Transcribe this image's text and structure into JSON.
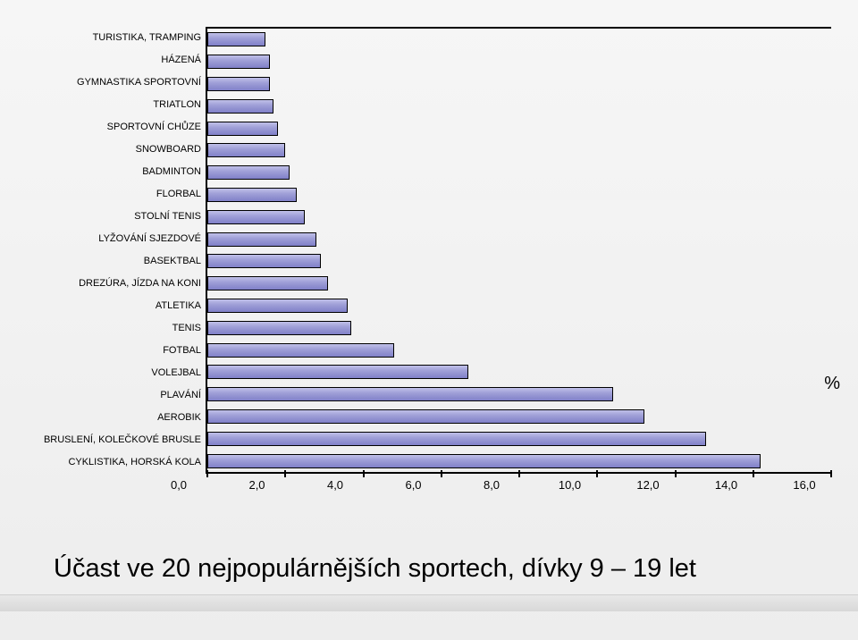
{
  "chart": {
    "type": "bar-horizontal",
    "xmin": 0.0,
    "xmax": 16.0,
    "xtick_step": 2.0,
    "xtick_labels": [
      "0,0",
      "2,0",
      "4,0",
      "6,0",
      "8,0",
      "10,0",
      "12,0",
      "14,0",
      "16,0"
    ],
    "bar_fill": "#9a9ad4",
    "bar_border": "#000000",
    "axis_color": "#000000",
    "background": "#f2f2f2",
    "label_fontsize": 11,
    "tick_fontsize": 13,
    "categories": [
      {
        "label": "TURISTIKA, TRAMPING",
        "value": 1.5
      },
      {
        "label": "HÁZENÁ",
        "value": 1.6
      },
      {
        "label": "GYMNASTIKA SPORTOVNÍ",
        "value": 1.6
      },
      {
        "label": "TRIATLON",
        "value": 1.7
      },
      {
        "label": "SPORTOVNÍ CHŮZE",
        "value": 1.8
      },
      {
        "label": "SNOWBOARD",
        "value": 2.0
      },
      {
        "label": "BADMINTON",
        "value": 2.1
      },
      {
        "label": "FLORBAL",
        "value": 2.3
      },
      {
        "label": "STOLNÍ TENIS",
        "value": 2.5
      },
      {
        "label": "LYŽOVÁNÍ SJEZDOVÉ",
        "value": 2.8
      },
      {
        "label": "BASEKTBAL",
        "value": 2.9
      },
      {
        "label": "DREZÚRA, JÍZDA NA KONI",
        "value": 3.1
      },
      {
        "label": "ATLETIKA",
        "value": 3.6
      },
      {
        "label": "TENIS",
        "value": 3.7
      },
      {
        "label": "FOTBAL",
        "value": 4.8
      },
      {
        "label": "VOLEJBAL",
        "value": 6.7
      },
      {
        "label": "PLAVÁNÍ",
        "value": 10.4
      },
      {
        "label": "AEROBIK",
        "value": 11.2
      },
      {
        "label": "BRUSLENÍ, KOLEČKOVÉ BRUSLE",
        "value": 12.8
      },
      {
        "label": "CYKLISTIKA, HORSKÁ KOLA",
        "value": 14.2
      }
    ]
  },
  "percent_symbol": "%",
  "caption": "Účast ve 20 nejpopulárnějších sportech, dívky 9 – 19 let"
}
